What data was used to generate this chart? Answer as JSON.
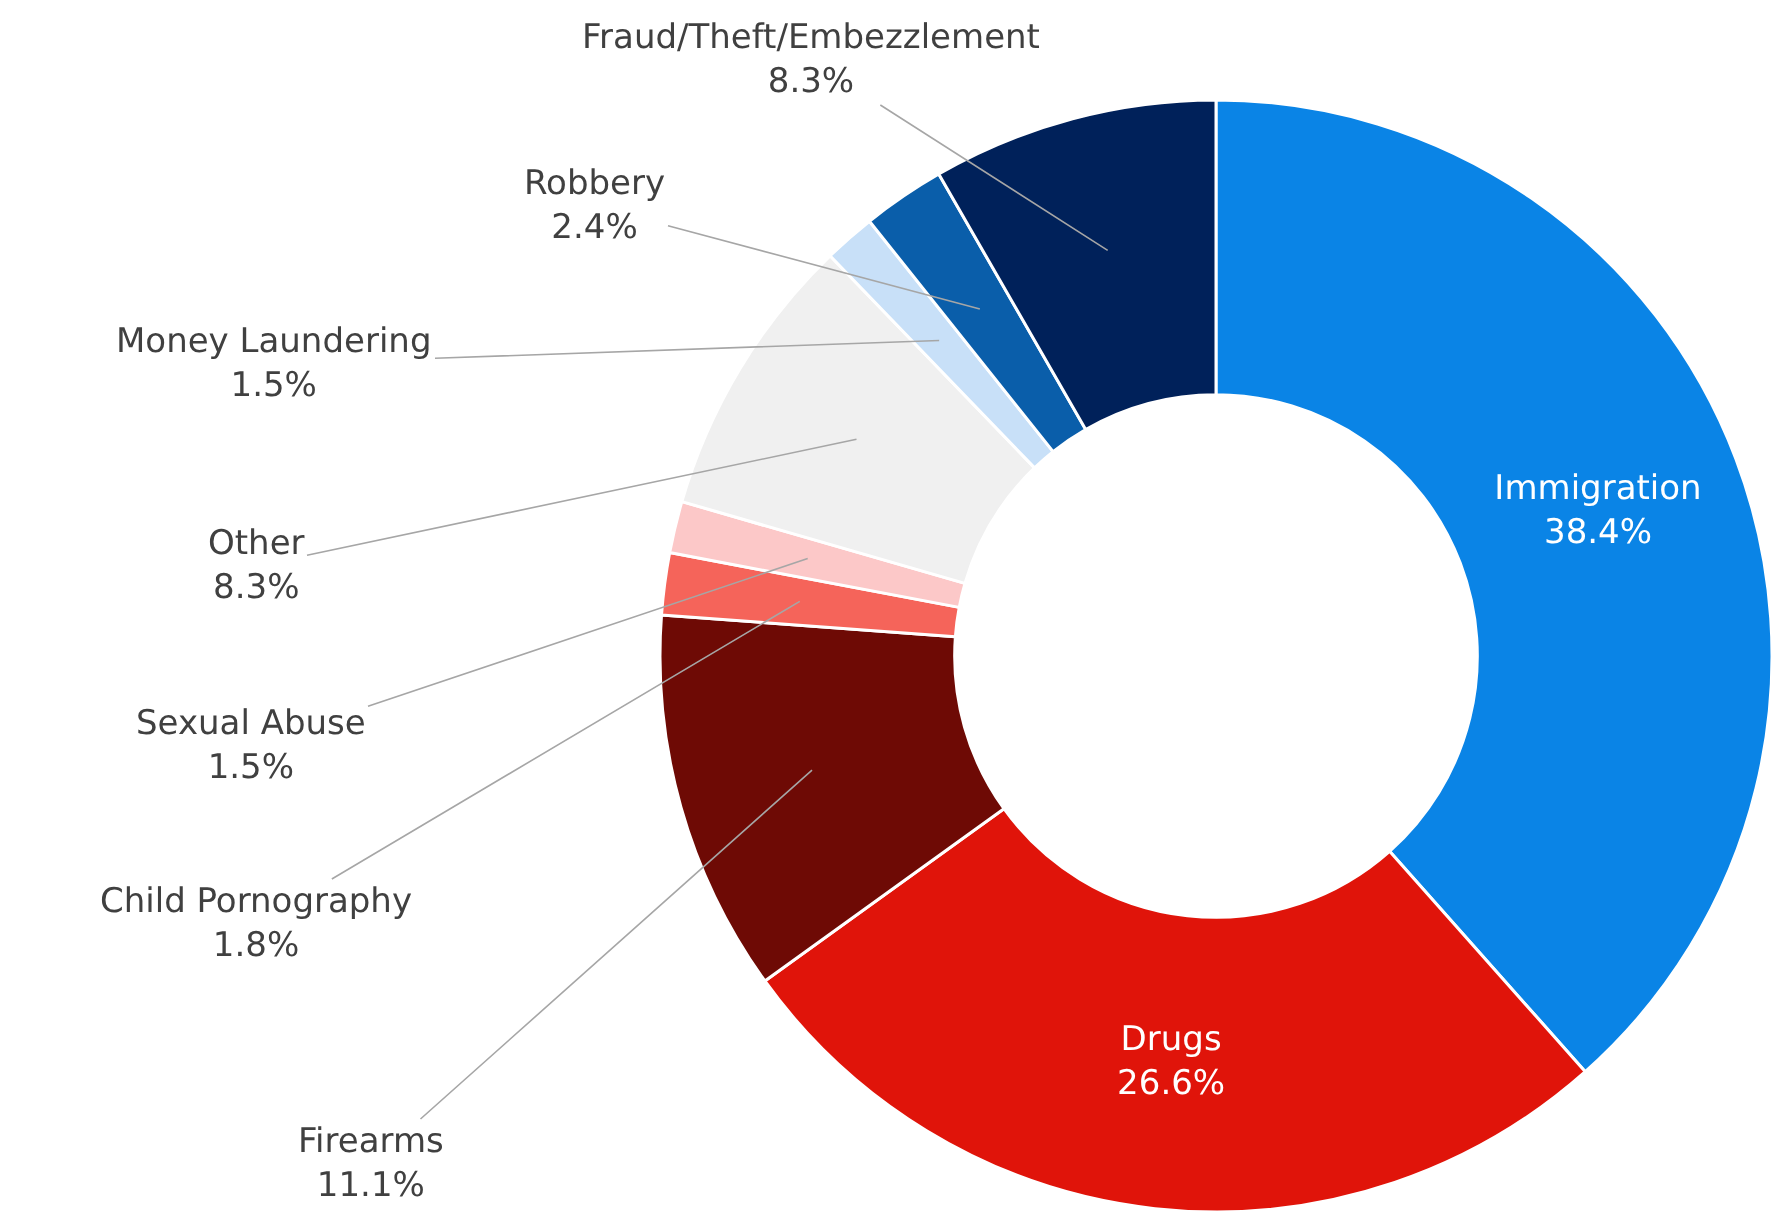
{
  "chart_data": {
    "type": "donut",
    "categories": [
      "Immigration",
      "Drugs",
      "Firearms",
      "Child Pornography",
      "Sexual Abuse",
      "Other",
      "Money Laundering",
      "Robbery",
      "Fraud/Theft/Embezzlement"
    ],
    "values": [
      38.4,
      26.6,
      11.1,
      1.8,
      1.5,
      8.3,
      1.5,
      2.4,
      8.3
    ],
    "value_labels": [
      "38.4%",
      "26.6%",
      "11.1%",
      "1.8%",
      "1.5%",
      "8.3%",
      "1.5%",
      "2.4%",
      "8.3%"
    ],
    "colors": [
      "#0a84e6",
      "#e0140a",
      "#6e0a05",
      "#f5645a",
      "#fcc8c8",
      "#f0f0f0",
      "#c8e0f8",
      "#0a5eaa",
      "#00215a"
    ],
    "legend": false
  }
}
